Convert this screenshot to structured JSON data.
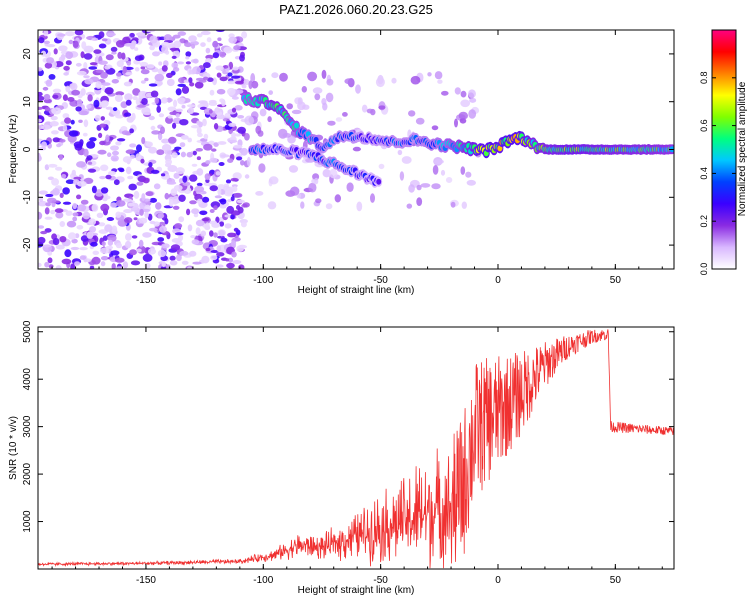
{
  "title": "PAZ1.2026.060.20.23.G25",
  "chart_data": [
    {
      "type": "heatmap",
      "name": "spectrogram",
      "xlabel": "Height of straight line (km)",
      "ylabel": "Frequency (Hz)",
      "xlim": [
        -196,
        75
      ],
      "ylim": [
        -25,
        25
      ],
      "xticks": [
        -150,
        -100,
        -50,
        0,
        50
      ],
      "yticks": [
        -20,
        -10,
        0,
        10,
        20
      ],
      "colorbar": {
        "label": "Normalized spectral amplitude",
        "range": [
          0,
          1
        ],
        "ticks": [
          0.0,
          0.2,
          0.4,
          0.6,
          0.8
        ],
        "colors": [
          "#ffffff",
          "#d9b8ff",
          "#8a2be2",
          "#3a00ff",
          "#0040ff",
          "#00c8ff",
          "#00ff80",
          "#80ff00",
          "#ffff00",
          "#ff8000",
          "#ff0000",
          "#ff0080"
        ]
      },
      "features": {
        "noise_region_x": [
          -196,
          -108
        ],
        "main_track": [
          {
            "x": -108,
            "f": 10.5,
            "a": 0.45
          },
          {
            "x": -100,
            "f": 10.0,
            "a": 0.5
          },
          {
            "x": -95,
            "f": 9.5,
            "a": 0.55
          },
          {
            "x": -90,
            "f": 6.5,
            "a": 0.5
          },
          {
            "x": -85,
            "f": 4.0,
            "a": 0.45
          },
          {
            "x": -80,
            "f": 2.5,
            "a": 0.4
          },
          {
            "x": -75,
            "f": 0.5,
            "a": 0.35
          },
          {
            "x": -70,
            "f": 2.0,
            "a": 0.35
          },
          {
            "x": -65,
            "f": 3.0,
            "a": 0.35
          },
          {
            "x": -55,
            "f": 2.5,
            "a": 0.3
          },
          {
            "x": -45,
            "f": 1.5,
            "a": 0.35
          },
          {
            "x": -35,
            "f": 2.0,
            "a": 0.35
          },
          {
            "x": -25,
            "f": 1.0,
            "a": 0.4
          },
          {
            "x": -15,
            "f": 0.5,
            "a": 0.5
          },
          {
            "x": -10,
            "f": 0.0,
            "a": 0.6
          },
          {
            "x": -5,
            "f": -0.2,
            "a": 0.7
          },
          {
            "x": 0,
            "f": 0.5,
            "a": 0.65
          },
          {
            "x": 5,
            "f": 2.0,
            "a": 0.7
          },
          {
            "x": 10,
            "f": 2.5,
            "a": 0.65
          },
          {
            "x": 15,
            "f": 1.0,
            "a": 0.55
          },
          {
            "x": 20,
            "f": 0.0,
            "a": 0.55
          },
          {
            "x": 30,
            "f": 0.0,
            "a": 0.6
          },
          {
            "x": 50,
            "f": 0.0,
            "a": 0.55
          },
          {
            "x": 75,
            "f": 0.0,
            "a": 0.5
          }
        ],
        "secondary_track": [
          {
            "x": -105,
            "f": 0.0,
            "a": 0.4
          },
          {
            "x": -95,
            "f": 0.0,
            "a": 0.3
          },
          {
            "x": -80,
            "f": -1.0,
            "a": 0.3
          },
          {
            "x": -70,
            "f": -3.0,
            "a": 0.35
          },
          {
            "x": -60,
            "f": -5.0,
            "a": 0.3
          },
          {
            "x": -50,
            "f": -7.0,
            "a": 0.25
          }
        ]
      }
    },
    {
      "type": "line",
      "name": "snr",
      "xlabel": "Height of straight line (km)",
      "ylabel": "SNR (10 * v/v)",
      "xlim": [
        -196,
        75
      ],
      "ylim": [
        0,
        5100
      ],
      "xticks": [
        -150,
        -100,
        -50,
        0,
        50
      ],
      "yticks": [
        1000,
        2000,
        3000,
        4000,
        5000
      ],
      "color": "#f03030",
      "envelope": [
        {
          "x": -196,
          "mean": 100,
          "spread": 40
        },
        {
          "x": -150,
          "mean": 120,
          "spread": 40
        },
        {
          "x": -110,
          "mean": 160,
          "spread": 60
        },
        {
          "x": -95,
          "mean": 300,
          "spread": 150
        },
        {
          "x": -85,
          "mean": 500,
          "spread": 300
        },
        {
          "x": -75,
          "mean": 450,
          "spread": 300
        },
        {
          "x": -60,
          "mean": 700,
          "spread": 600
        },
        {
          "x": -50,
          "mean": 900,
          "spread": 900
        },
        {
          "x": -40,
          "mean": 1000,
          "spread": 1100
        },
        {
          "x": -30,
          "mean": 1200,
          "spread": 1500
        },
        {
          "x": -20,
          "mean": 1300,
          "spread": 1400
        },
        {
          "x": -15,
          "mean": 1700,
          "spread": 1600
        },
        {
          "x": -10,
          "mean": 2900,
          "spread": 1500
        },
        {
          "x": 0,
          "mean": 3300,
          "spread": 1200
        },
        {
          "x": 10,
          "mean": 3700,
          "spread": 900
        },
        {
          "x": 20,
          "mean": 4300,
          "spread": 500
        },
        {
          "x": 30,
          "mean": 4700,
          "spread": 250
        },
        {
          "x": 40,
          "mean": 4900,
          "spread": 150
        },
        {
          "x": 47,
          "mean": 4950,
          "spread": 120
        },
        {
          "x": 48,
          "mean": 3000,
          "spread": 120
        },
        {
          "x": 60,
          "mean": 2950,
          "spread": 100
        },
        {
          "x": 75,
          "mean": 2900,
          "spread": 90
        }
      ]
    }
  ]
}
